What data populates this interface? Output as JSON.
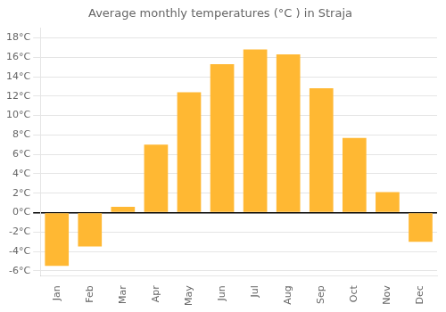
{
  "chart_data": {
    "type": "bar",
    "title": "Average monthly temperatures (°C ) in Straja",
    "categories": [
      "Jan",
      "Feb",
      "Mar",
      "Apr",
      "May",
      "Jun",
      "Jul",
      "Aug",
      "Sep",
      "Oct",
      "Nov",
      "Dec"
    ],
    "values": [
      -5.5,
      -3.5,
      0.6,
      7.0,
      12.4,
      15.3,
      16.8,
      16.3,
      12.8,
      7.7,
      2.1,
      -3.0
    ],
    "color": "#FFB833",
    "ylim": [
      -6.5,
      19
    ],
    "yticks": [
      {
        "value": -6,
        "label": "-6°C"
      },
      {
        "value": -4,
        "label": "-4°C"
      },
      {
        "value": -2,
        "label": "-2°C"
      },
      {
        "value": 0,
        "label": "0°C"
      },
      {
        "value": 2,
        "label": "2°C"
      },
      {
        "value": 4,
        "label": "4°C"
      },
      {
        "value": 6,
        "label": "6°C"
      },
      {
        "value": 8,
        "label": "8°C"
      },
      {
        "value": 10,
        "label": "10°C"
      },
      {
        "value": 12,
        "label": "12°C"
      },
      {
        "value": 14,
        "label": "14°C"
      },
      {
        "value": 16,
        "label": "16°C"
      },
      {
        "value": 18,
        "label": "18°C"
      }
    ],
    "grid": true
  }
}
